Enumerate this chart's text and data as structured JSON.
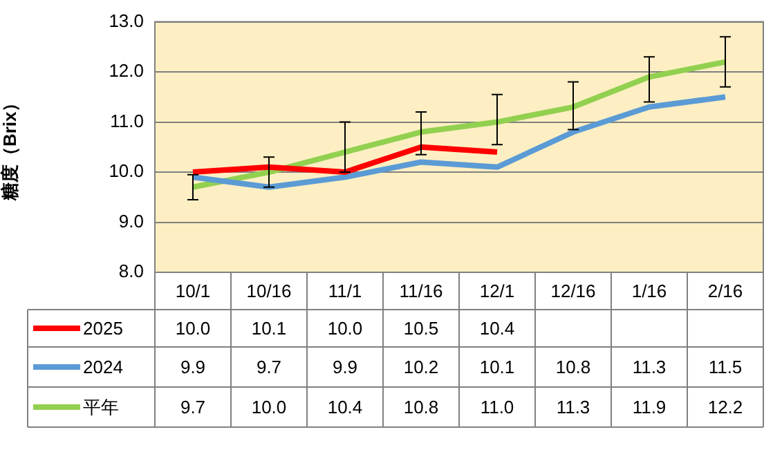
{
  "chart_data": {
    "type": "line",
    "ylabel": "糖度（Brix）",
    "categories": [
      "10/1",
      "10/16",
      "11/1",
      "11/16",
      "12/1",
      "12/16",
      "1/16",
      "2/16"
    ],
    "series": [
      {
        "name": "2025",
        "color": "#ff0000",
        "values": [
          10.0,
          10.1,
          10.0,
          10.5,
          10.4,
          null,
          null,
          null
        ],
        "value_labels": [
          "10.0",
          "10.1",
          "10.0",
          "10.5",
          "10.4",
          null,
          null,
          null
        ]
      },
      {
        "name": "2024",
        "color": "#5b9bd5",
        "values": [
          9.9,
          9.7,
          9.9,
          10.2,
          10.1,
          10.8,
          11.3,
          11.5
        ],
        "value_labels": [
          "9.9",
          "9.7",
          "9.9",
          "10.2",
          "10.1",
          "10.8",
          "11.3",
          "11.5"
        ]
      },
      {
        "name": "平年",
        "color": "#92d050",
        "values": [
          9.7,
          10.0,
          10.4,
          10.8,
          11.0,
          11.3,
          11.9,
          12.2
        ],
        "value_labels": [
          "9.7",
          "10.0",
          "10.4",
          "10.8",
          "11.0",
          "11.3",
          "11.9",
          "12.2"
        ],
        "errors": [
          [
            9.45,
            9.95
          ],
          [
            9.7,
            10.3
          ],
          [
            10.0,
            11.0
          ],
          [
            10.35,
            11.2
          ],
          [
            10.55,
            11.55
          ],
          [
            10.85,
            11.8
          ],
          [
            11.4,
            12.3
          ],
          [
            11.7,
            12.7
          ]
        ]
      }
    ],
    "ylim": [
      8,
      13
    ],
    "yticks": [
      {
        "value": 8,
        "label": "8.0"
      },
      {
        "value": 9,
        "label": "9.0"
      },
      {
        "value": 10,
        "label": "10.0"
      },
      {
        "value": 11,
        "label": "11.0"
      },
      {
        "value": 12,
        "label": "12.0"
      },
      {
        "value": 13,
        "label": "13.0"
      }
    ],
    "grid": "y",
    "legend": "bottom",
    "line_style": "solid"
  }
}
